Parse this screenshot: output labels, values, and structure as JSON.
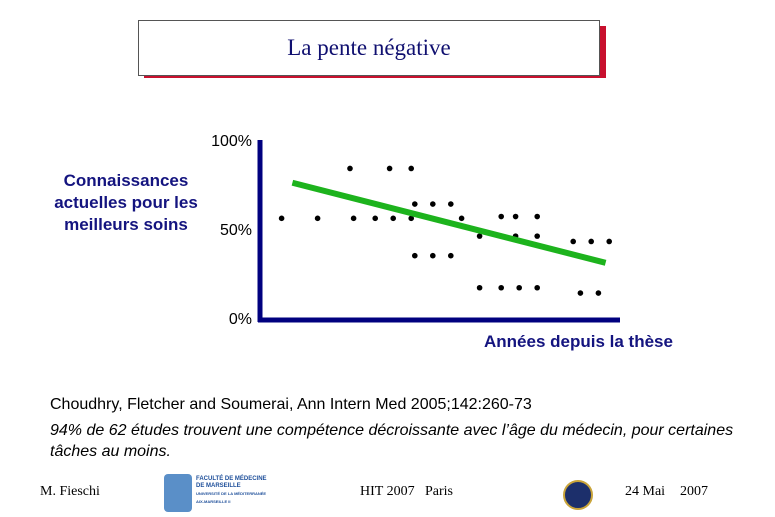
{
  "slide_title": "La pente négative",
  "chart_data": {
    "type": "scatter",
    "ylabel": "Connaissances actuelles  pour les meilleurs soins",
    "xlabel": "Années depuis la thèse",
    "xlim": [
      0,
      100
    ],
    "ylim": [
      0,
      100
    ],
    "yticks": [
      {
        "value": 0,
        "label": "0%"
      },
      {
        "value": 50,
        "label": "50%"
      },
      {
        "value": 100,
        "label": "100%"
      }
    ],
    "color": "#000000",
    "axis_color": "#00007f",
    "x": [
      6,
      16,
      25,
      26,
      32,
      36,
      37,
      42,
      42,
      43,
      43,
      48,
      48,
      53,
      53,
      56,
      61,
      61,
      67,
      67,
      67,
      71,
      71,
      72,
      77,
      77,
      77,
      87,
      89,
      92,
      94,
      97
    ],
    "y": [
      56,
      56,
      84,
      56,
      56,
      84,
      56,
      84,
      56,
      64,
      35,
      64,
      35,
      64,
      35,
      56,
      46,
      17,
      57,
      46,
      17,
      57,
      46,
      17,
      57,
      46,
      17,
      43,
      14,
      43,
      14,
      43
    ],
    "trendline": {
      "color": "#1db31d",
      "x": [
        9,
        96
      ],
      "y": [
        76,
        31
      ]
    }
  },
  "citation": "Choudhry, Fletcher and Soumerai, Ann Intern Med 2005;142:260-73",
  "note": "94% de 62 études trouvent une compétence décroissante avec l’âge du médecin, pour certaines tâches au moins.",
  "footer": {
    "author": "M. Fieschi",
    "logo_line1": "FACULTÉ DE MÉDECINE",
    "logo_line2": "DE MARSEILLE",
    "logo_line3": "UNIVERSITÉ DE LA MÉDITERRANÉE",
    "logo_line4": "AIX-MARSEILLE II",
    "event": "HIT 2007",
    "place": "Paris",
    "date": "24 Mai",
    "year": "2007"
  }
}
